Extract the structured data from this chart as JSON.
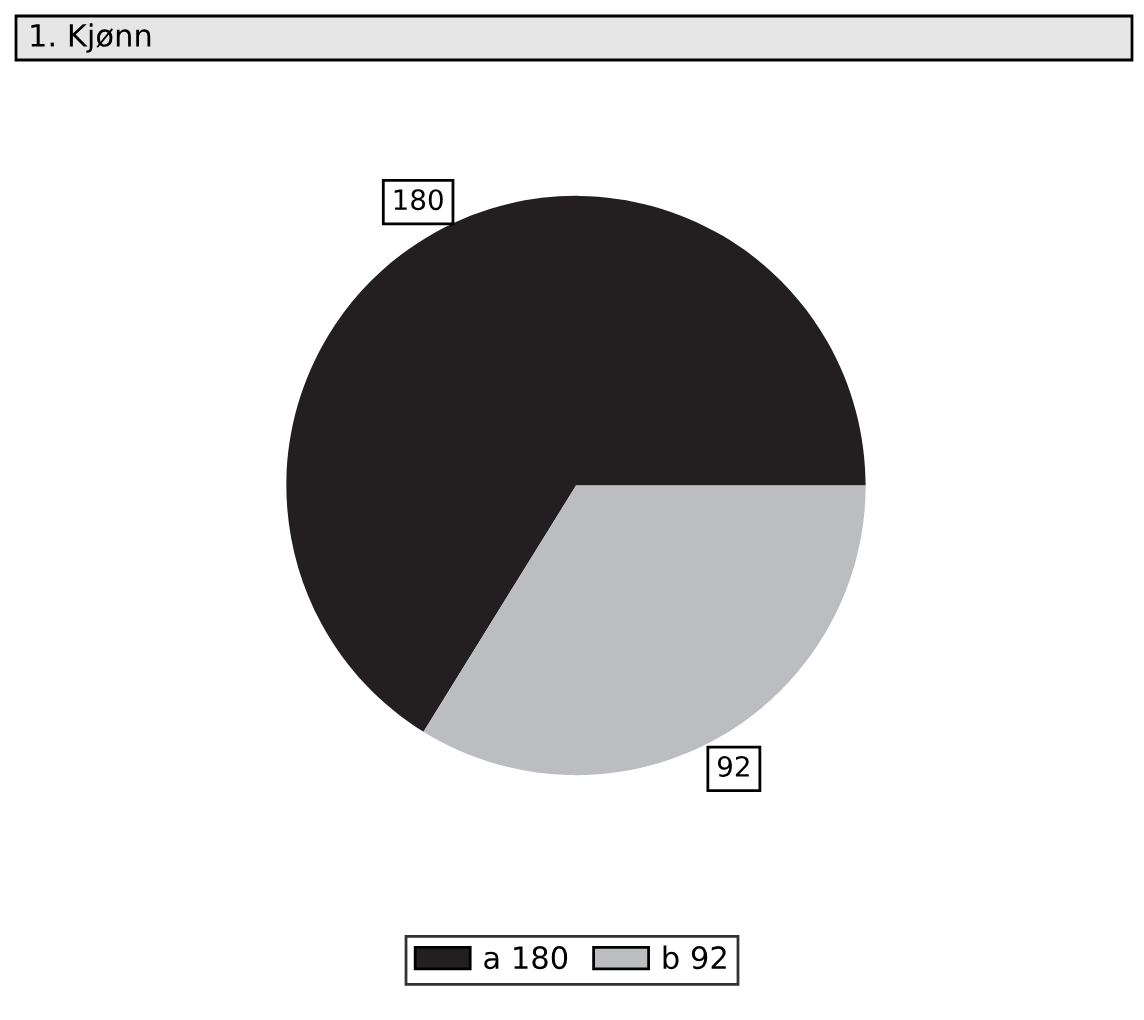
{
  "chart_data": {
    "type": "pie",
    "title": "1. Kjønn",
    "categories": [
      "a 180",
      "b 92"
    ],
    "values": [
      180,
      92
    ],
    "colors": [
      "#231f20",
      "#bcbdc0"
    ],
    "data_labels": true,
    "legend": "bottom"
  }
}
